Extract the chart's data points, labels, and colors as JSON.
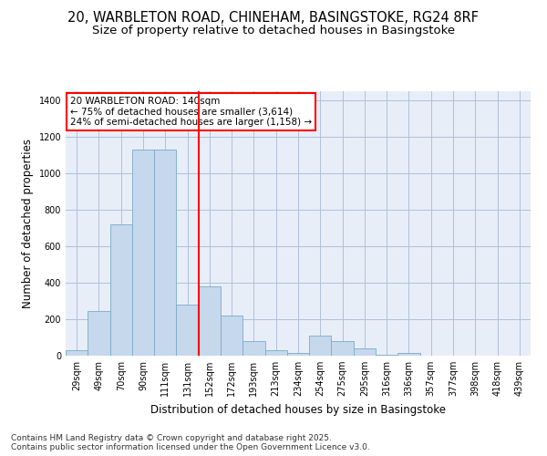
{
  "title_line1": "20, WARBLETON ROAD, CHINEHAM, BASINGSTOKE, RG24 8RF",
  "title_line2": "Size of property relative to detached houses in Basingstoke",
  "xlabel": "Distribution of detached houses by size in Basingstoke",
  "ylabel": "Number of detached properties",
  "categories": [
    "29sqm",
    "49sqm",
    "70sqm",
    "90sqm",
    "111sqm",
    "131sqm",
    "152sqm",
    "172sqm",
    "193sqm",
    "213sqm",
    "234sqm",
    "254sqm",
    "275sqm",
    "295sqm",
    "316sqm",
    "336sqm",
    "357sqm",
    "377sqm",
    "398sqm",
    "418sqm",
    "439sqm"
  ],
  "values": [
    30,
    245,
    720,
    1130,
    1130,
    280,
    380,
    220,
    80,
    30,
    15,
    110,
    80,
    40,
    5,
    15,
    0,
    0,
    0,
    0,
    0
  ],
  "bar_color": "#c5d8ec",
  "bar_edge_color": "#7aaac8",
  "grid_color": "#b0c0d8",
  "background_color": "#ffffff",
  "plot_bg_color": "#e8eef8",
  "vline_x": 5.5,
  "vline_color": "red",
  "annotation_text": "20 WARBLETON ROAD: 140sqm\n← 75% of detached houses are smaller (3,614)\n24% of semi-detached houses are larger (1,158) →",
  "annotation_box_color": "red",
  "footnote": "Contains HM Land Registry data © Crown copyright and database right 2025.\nContains public sector information licensed under the Open Government Licence v3.0.",
  "ylim": [
    0,
    1450
  ],
  "yticks": [
    0,
    200,
    400,
    600,
    800,
    1000,
    1200,
    1400
  ],
  "title_fontsize": 10.5,
  "subtitle_fontsize": 9.5,
  "axis_label_fontsize": 8.5,
  "tick_fontsize": 7,
  "footnote_fontsize": 6.5,
  "annot_fontsize": 7.5
}
